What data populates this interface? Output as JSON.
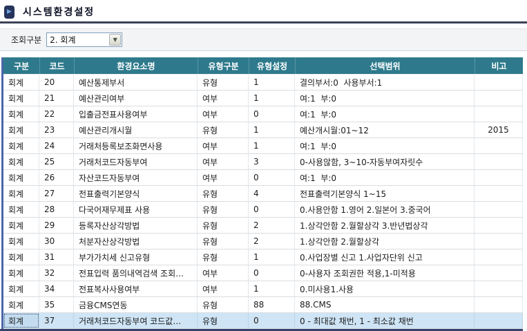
{
  "header": {
    "title": "시스템환경설정"
  },
  "toolbar": {
    "query_label": "조회구분",
    "query_value": "2. 회계"
  },
  "table": {
    "columns": [
      "구분",
      "코드",
      "환경요소명",
      "유형구분",
      "유형설정",
      "선택범위",
      "비고"
    ],
    "selected_code": "37",
    "rows": [
      {
        "category": "회계",
        "code": "20",
        "name": "예산통제부서",
        "type_class": "유형",
        "type_value": "1",
        "range": "결의부서:0  사용부서:1",
        "note": ""
      },
      {
        "category": "회계",
        "code": "21",
        "name": "예산관리여부",
        "type_class": "여부",
        "type_value": "1",
        "range": "여:1  부:0",
        "note": ""
      },
      {
        "category": "회계",
        "code": "22",
        "name": "입출금전표사용여부",
        "type_class": "여부",
        "type_value": "0",
        "range": "여:1  부:0",
        "note": ""
      },
      {
        "category": "회계",
        "code": "23",
        "name": "예산관리개시월",
        "type_class": "유형",
        "type_value": "1",
        "range": "예산개시월:01~12",
        "note": "2015"
      },
      {
        "category": "회계",
        "code": "24",
        "name": "거래처등록보조화면사용",
        "type_class": "여부",
        "type_value": "1",
        "range": "여:1  부:0",
        "note": ""
      },
      {
        "category": "회계",
        "code": "25",
        "name": "거래처코드자동부여",
        "type_class": "여부",
        "type_value": "3",
        "range": "0-사용않함, 3~10-자동부여자릿수",
        "note": ""
      },
      {
        "category": "회계",
        "code": "26",
        "name": "자산코드자동부여",
        "type_class": "여부",
        "type_value": "0",
        "range": "여:1  부:0",
        "note": ""
      },
      {
        "category": "회계",
        "code": "27",
        "name": "전표출력기본양식",
        "type_class": "유형",
        "type_value": "4",
        "range": "전표출력기본양식 1~15",
        "note": ""
      },
      {
        "category": "회계",
        "code": "28",
        "name": "다국어재무제표 사용",
        "type_class": "유형",
        "type_value": "0",
        "range": "0.사용안함 1.영어 2.일본어 3.중국어",
        "note": ""
      },
      {
        "category": "회계",
        "code": "29",
        "name": "등록자산상각방법",
        "type_class": "유형",
        "type_value": "2",
        "range": "1.상각안함 2.월할상각 3.반년법상각",
        "note": ""
      },
      {
        "category": "회계",
        "code": "30",
        "name": "처분자산상각방법",
        "type_class": "유형",
        "type_value": "2",
        "range": "1.상각안함 2.월할상각",
        "note": ""
      },
      {
        "category": "회계",
        "code": "31",
        "name": "부가가치세 신고유형",
        "type_class": "유형",
        "type_value": "1",
        "range": "0.사업장별 신고 1.사업자단위 신고",
        "note": ""
      },
      {
        "category": "회계",
        "code": "32",
        "name": "전표입력 품의내역검색 조회…",
        "type_class": "여부",
        "type_value": "0",
        "range": "0-사용자 조회권한 적용,1-미적용",
        "note": ""
      },
      {
        "category": "회계",
        "code": "34",
        "name": "전표복사사용여부",
        "type_class": "여부",
        "type_value": "1",
        "range": "0.미사용1.사용",
        "note": ""
      },
      {
        "category": "회계",
        "code": "35",
        "name": "금융CMS연동",
        "type_class": "유형",
        "type_value": "88",
        "range": "88.CMS",
        "note": ""
      },
      {
        "category": "회계",
        "code": "37",
        "name": "거래처코드자동부여 코드값…",
        "type_class": "유형",
        "type_value": "0",
        "range": "0 - 최대값 채번, 1 - 최소값 채번",
        "note": ""
      }
    ]
  },
  "icons": {
    "title_icon": "play-icon",
    "dropdown_arrow": "chevron-down-icon"
  },
  "colors": {
    "header_teal": "#2e7a8c",
    "title_rule_navy": "#3a4258",
    "grid_left_border_blue": "#4a66a8",
    "bottom_rule_navy": "#34436e",
    "selected_row_bg": "#cfe5f6",
    "toolbar_bg": "#f3f4f6"
  }
}
